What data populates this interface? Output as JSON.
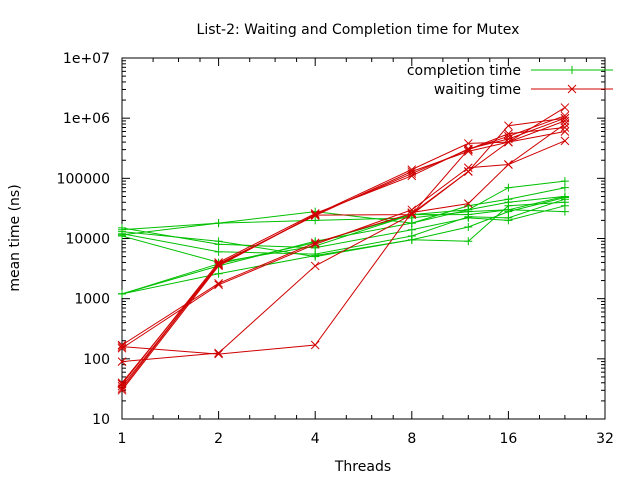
{
  "chart_data": {
    "type": "line",
    "title": "List-2: Waiting and Completion time for Mutex",
    "xlabel": "Threads",
    "ylabel": "mean time (ns)",
    "x_scale": "log2",
    "y_scale": "log10",
    "xlim": [
      1,
      32
    ],
    "ylim": [
      10,
      10000000
    ],
    "x_ticks": [
      "1",
      "2",
      "4",
      "8",
      "16",
      "32"
    ],
    "y_ticks": [
      "10",
      "100",
      "1000",
      "10000",
      "100000",
      "1e+06",
      "1e+07"
    ],
    "legend_position": "top-right",
    "grid": false,
    "series": [
      {
        "name": "completion time",
        "color": "#00c000",
        "marker": "plus",
        "lines": [
          {
            "x": [
              1,
              2,
              4,
              8,
              12,
              16,
              24
            ],
            "y": [
              1200,
              3800,
              8500,
              25000,
              30000,
              40000,
              50000
            ]
          },
          {
            "x": [
              1,
              2,
              4,
              8,
              12,
              16,
              24
            ],
            "y": [
              1200,
              2600,
              5200,
              9500,
              15500,
              28000,
              48000
            ]
          },
          {
            "x": [
              1,
              2,
              4,
              8,
              12,
              16,
              24
            ],
            "y": [
              11000,
              4000,
              7500,
              25000,
              25000,
              30000,
              50000
            ]
          },
          {
            "x": [
              1,
              2,
              4,
              8,
              12,
              16,
              24
            ],
            "y": [
              12000,
              6000,
              5500,
              11000,
              23000,
              22000,
              45000
            ]
          },
          {
            "x": [
              1,
              2,
              4,
              8,
              12,
              16,
              24
            ],
            "y": [
              13000,
              9000,
              5000,
              9500,
              9000,
              35000,
              40000
            ]
          },
          {
            "x": [
              1,
              2,
              4,
              8,
              12,
              16,
              24
            ],
            "y": [
              14000,
              18000,
              28000,
              18000,
              30000,
              70000,
              90000
            ]
          },
          {
            "x": [
              1,
              2,
              4,
              8,
              12,
              16,
              24
            ],
            "y": [
              11500,
              18000,
              20000,
              22000,
              28000,
              30000,
              28000
            ]
          },
          {
            "x": [
              1,
              2,
              4,
              8,
              12,
              16,
              24
            ],
            "y": [
              15000,
              8000,
              7000,
              14000,
              22000,
              20000,
              35000
            ]
          },
          {
            "x": [
              1,
              2,
              4,
              8,
              12,
              16,
              24
            ],
            "y": [
              1200,
              3500,
              9000,
              18000,
              35000,
              45000,
              70000
            ]
          }
        ]
      },
      {
        "name": "waiting time",
        "color": "#d00000",
        "marker": "cross",
        "lines": [
          {
            "x": [
              1,
              2,
              4,
              8,
              12,
              16,
              24
            ],
            "y": [
              35,
              3600,
              25000,
              140000,
              380000,
              400000,
              1500000
            ]
          },
          {
            "x": [
              1,
              2,
              4,
              8,
              12,
              16,
              24
            ],
            "y": [
              30,
              3500,
              25000,
              120000,
              300000,
              500000,
              1100000
            ]
          },
          {
            "x": [
              1,
              2,
              4,
              8,
              12,
              16,
              24
            ],
            "y": [
              32,
              3800,
              24000,
              130000,
              280000,
              400000,
              900000
            ]
          },
          {
            "x": [
              1,
              2,
              4,
              8,
              12,
              16,
              24
            ],
            "y": [
              38,
              4000,
              26000,
              110000,
              310000,
              450000,
              1000000
            ]
          },
          {
            "x": [
              1,
              2,
              4,
              8,
              12,
              16,
              24
            ],
            "y": [
              160,
              120,
              170,
              27000,
              38000,
              170000,
              420000
            ]
          },
          {
            "x": [
              1,
              2,
              4,
              8,
              12,
              16,
              24
            ],
            "y": [
              90,
              125,
              3500,
              25000,
              130000,
              750000,
              1000000
            ]
          },
          {
            "x": [
              1,
              2,
              4,
              8,
              12,
              16,
              24
            ],
            "y": [
              150,
              1700,
              8000,
              30000,
              150000,
              170000,
              800000
            ]
          },
          {
            "x": [
              1,
              2,
              4,
              8,
              12,
              16,
              24
            ],
            "y": [
              170,
              1800,
              8500,
              26000,
              130000,
              400000,
              600000
            ]
          },
          {
            "x": [
              1,
              2,
              4,
              8,
              12,
              16,
              24
            ],
            "y": [
              40,
              3700,
              24500,
              25000,
              300000,
              550000,
              700000
            ]
          }
        ]
      }
    ]
  }
}
